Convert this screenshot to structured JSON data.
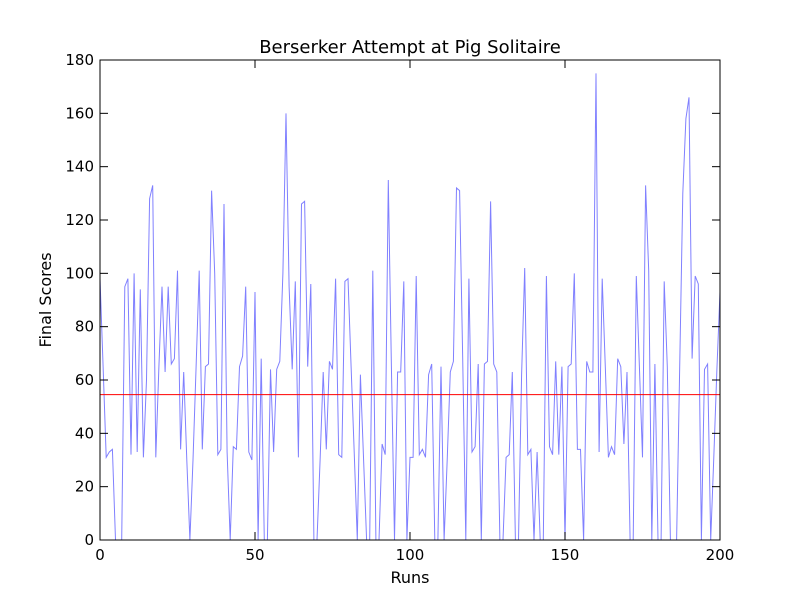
{
  "chart_data": {
    "type": "line",
    "title": "Berserker Attempt at Pig Solitaire",
    "x_label": "Runs",
    "y_label": "Final Scores",
    "x": [
      0,
      1,
      2,
      3,
      4,
      5,
      6,
      7,
      8,
      9,
      10,
      11,
      12,
      13,
      14,
      15,
      16,
      17,
      18,
      19,
      20,
      21,
      22,
      23,
      24,
      25,
      26,
      27,
      28,
      29,
      30,
      31,
      32,
      33,
      34,
      35,
      36,
      37,
      38,
      39,
      40,
      41,
      42,
      43,
      44,
      45,
      46,
      47,
      48,
      49,
      50,
      51,
      52,
      53,
      54,
      55,
      56,
      57,
      58,
      59,
      60,
      61,
      62,
      63,
      64,
      65,
      66,
      67,
      68,
      69,
      70,
      71,
      72,
      73,
      74,
      75,
      76,
      77,
      78,
      79,
      80,
      81,
      82,
      83,
      84,
      85,
      86,
      87,
      88,
      89,
      90,
      91,
      92,
      93,
      94,
      95,
      96,
      97,
      98,
      99,
      100,
      101,
      102,
      103,
      104,
      105,
      106,
      107,
      108,
      109,
      110,
      111,
      112,
      113,
      114,
      115,
      116,
      117,
      118,
      119,
      120,
      121,
      122,
      123,
      124,
      125,
      126,
      127,
      128,
      129,
      130,
      131,
      132,
      133,
      134,
      135,
      136,
      137,
      138,
      139,
      140,
      141,
      142,
      143,
      144,
      145,
      146,
      147,
      148,
      149,
      150,
      151,
      152,
      153,
      154,
      155,
      156,
      157,
      158,
      159,
      160,
      161,
      162,
      163,
      164,
      165,
      166,
      167,
      168,
      169,
      170,
      171,
      172,
      173,
      174,
      175,
      176,
      177,
      178,
      179,
      180,
      181,
      182,
      183,
      184,
      185,
      186,
      187,
      188,
      189,
      190,
      191,
      192,
      193,
      194,
      195,
      196,
      197,
      198,
      199,
      200
    ],
    "series": [
      {
        "color": "#8080ff",
        "values": [
          98,
          65,
          31,
          33,
          34,
          0,
          0,
          0,
          95,
          98,
          32,
          100,
          33,
          94,
          31,
          60,
          128,
          133,
          31,
          65,
          95,
          63,
          95,
          66,
          68,
          101,
          34,
          63,
          30,
          0,
          30,
          65,
          101,
          34,
          65,
          66,
          131,
          100,
          32,
          34,
          126,
          33,
          0,
          35,
          34,
          65,
          69,
          95,
          33,
          30,
          93,
          0,
          68,
          0,
          0,
          64,
          33,
          64,
          67,
          100,
          160,
          95,
          64,
          97,
          31,
          126,
          127,
          65,
          96,
          0,
          0,
          30,
          63,
          34,
          67,
          64,
          98,
          32,
          31,
          97,
          98,
          65,
          33,
          0,
          62,
          31,
          0,
          0,
          101,
          0,
          0,
          36,
          32,
          135,
          65,
          0,
          63,
          63,
          97,
          0,
          31,
          31,
          99,
          32,
          34,
          31,
          62,
          66,
          0,
          0,
          65,
          0,
          30,
          63,
          67,
          132,
          131,
          68,
          0,
          98,
          33,
          35,
          66,
          0,
          66,
          67,
          127,
          66,
          63,
          0,
          0,
          31,
          32,
          63,
          0,
          0,
          62,
          102,
          32,
          34,
          0,
          33,
          0,
          0,
          99,
          35,
          32,
          67,
          32,
          65,
          0,
          65,
          66,
          100,
          34,
          34,
          0,
          67,
          63,
          63,
          175,
          33,
          98,
          65,
          31,
          35,
          32,
          68,
          65,
          36,
          63,
          0,
          0,
          99,
          65,
          31,
          133,
          101,
          0,
          66,
          0,
          0,
          97,
          65,
          0,
          0,
          0,
          65,
          130,
          158,
          166,
          68,
          99,
          96,
          0,
          64,
          66,
          0,
          31,
          64,
          93
        ]
      }
    ],
    "reference_line": {
      "value": 54.5,
      "color": "#ff0000"
    },
    "xlim": [
      0,
      200
    ],
    "xticks": [
      0,
      50,
      100,
      150,
      200
    ],
    "ylim": [
      0,
      180
    ],
    "yticks": [
      0,
      20,
      40,
      60,
      80,
      100,
      120,
      140,
      160,
      180
    ]
  }
}
